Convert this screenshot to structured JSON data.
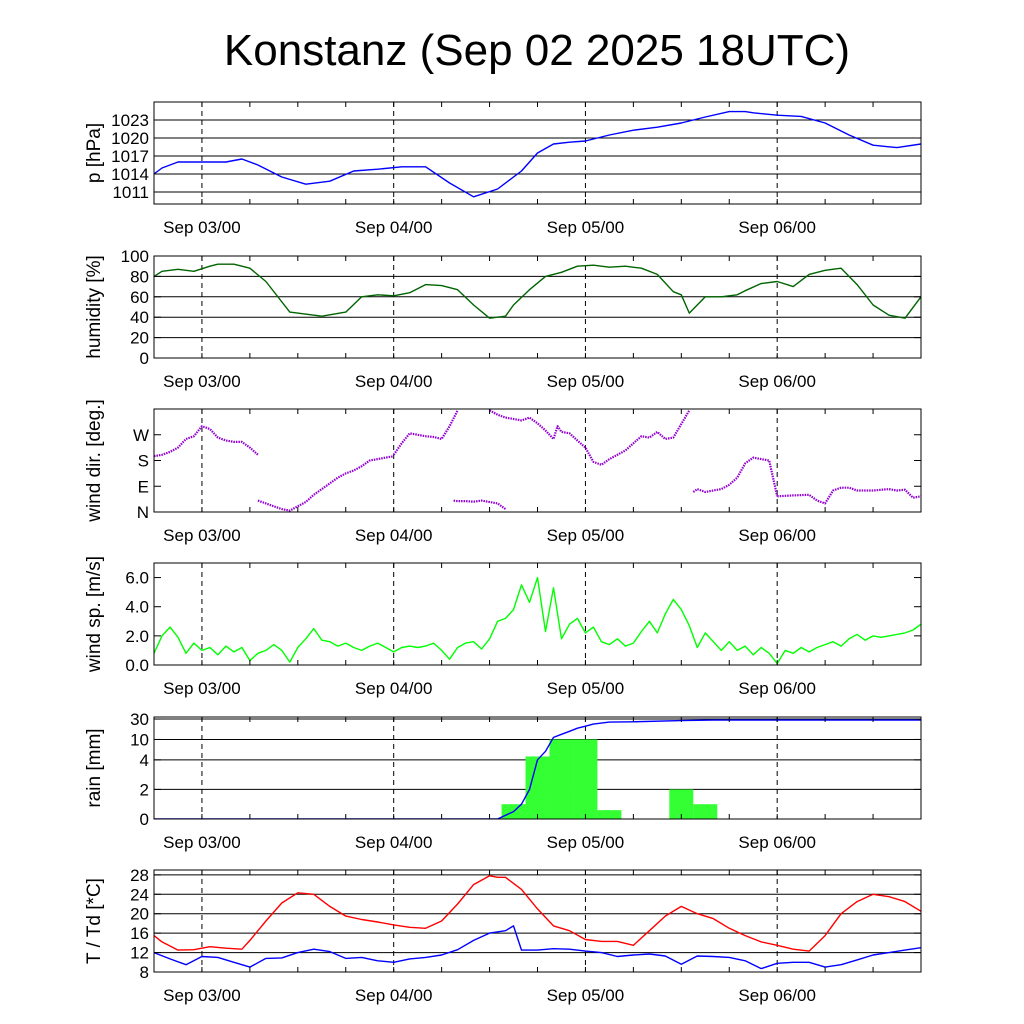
{
  "title": "Konstanz (Sep 02 2025 18UTC)",
  "x_axis": {
    "tick_labels": [
      "Sep 03/00",
      "Sep 04/00",
      "Sep 05/00",
      "Sep 06/00"
    ],
    "tick_hours": [
      6,
      30,
      54,
      78
    ],
    "range_hours": [
      0,
      96
    ],
    "minor_step_hours": 6
  },
  "colors": {
    "pressure": "#0000ff",
    "humidity": "#006400",
    "wind_dir": "#9400d3",
    "wind_speed": "#00ff00",
    "rain_bars": "#33ff33",
    "rain_cumulative": "#0000ff",
    "temperature": "#ff0000",
    "dewpoint": "#0000ff"
  },
  "chart_data": [
    {
      "type": "line",
      "ylabel": "p [hPa]",
      "ylim": [
        1009,
        1026
      ],
      "ytick_labels": [
        "1011",
        "1014",
        "1017",
        "1020",
        "1023"
      ],
      "ytick_values": [
        1011,
        1014,
        1017,
        1020,
        1023
      ],
      "grid": true,
      "series": [
        {
          "key": "pressure",
          "x": [
            0,
            1,
            3,
            6,
            9,
            11,
            13,
            16,
            19,
            22,
            25,
            28,
            31,
            34,
            37,
            40,
            43,
            46,
            48,
            50,
            52,
            54,
            57,
            60,
            63,
            66,
            69,
            72,
            74,
            75,
            78,
            81,
            84,
            87,
            90,
            93,
            96
          ],
          "y": [
            1014,
            1015,
            1016,
            1016,
            1016,
            1016.5,
            1015.5,
            1013.5,
            1012.3,
            1012.8,
            1014.5,
            1014.8,
            1015.2,
            1015.2,
            1012.5,
            1010.2,
            1011.5,
            1014.5,
            1017.5,
            1019,
            1019.3,
            1019.5,
            1020.5,
            1021.3,
            1021.8,
            1022.5,
            1023.5,
            1024.4,
            1024.4,
            1024.2,
            1023.8,
            1023.6,
            1022.5,
            1020.5,
            1018.8,
            1018.4,
            1019
          ]
        }
      ]
    },
    {
      "type": "line",
      "ylabel": "humidity [%]",
      "ylim": [
        0,
        100
      ],
      "ytick_labels": [
        "0",
        "20",
        "40",
        "60",
        "80",
        "100"
      ],
      "ytick_values": [
        0,
        20,
        40,
        60,
        80,
        100
      ],
      "grid": true,
      "series": [
        {
          "key": "humidity",
          "x": [
            0,
            1,
            3,
            5,
            7,
            8,
            10,
            12,
            14,
            17,
            21,
            24,
            26,
            28,
            30,
            32,
            34,
            36,
            38,
            40,
            42,
            44,
            45,
            47,
            49,
            51,
            53,
            55,
            57,
            59,
            61,
            63,
            65,
            66,
            67,
            69,
            71,
            73,
            74,
            76,
            78,
            80,
            82,
            84,
            86,
            88,
            90,
            92,
            94,
            96
          ],
          "y": [
            80,
            85,
            87,
            85,
            90,
            92,
            92,
            88,
            75,
            45,
            41,
            45,
            60,
            62,
            61,
            64,
            72,
            71,
            67,
            52,
            39,
            41,
            52,
            67,
            80,
            84,
            90,
            91,
            89,
            90,
            88,
            82,
            65,
            62,
            44,
            60,
            60,
            62,
            66,
            73,
            75,
            70,
            82,
            86,
            88,
            72,
            52,
            42,
            39,
            60
          ]
        }
      ]
    },
    {
      "type": "scatter",
      "ylabel": "wind dir. [deg.]",
      "ylim": [
        0,
        360
      ],
      "ytick_labels": [
        "N",
        "E",
        "S",
        "W"
      ],
      "ytick_values": [
        0,
        90,
        180,
        270
      ],
      "grid": false,
      "series": [
        {
          "key": "wind_dir",
          "segments": [
            {
              "x": [
                0,
                1,
                2,
                3,
                4,
                5,
                6,
                7,
                8,
                9,
                10,
                11,
                12,
                13
              ],
              "y": [
                195,
                200,
                210,
                225,
                255,
                265,
                300,
                290,
                260,
                250,
                245,
                245,
                225,
                200
              ]
            },
            {
              "x": [
                13,
                14,
                15,
                16,
                17,
                18,
                19,
                20,
                21,
                22,
                23,
                24,
                25,
                26,
                27,
                28,
                29,
                30
              ],
              "y": [
                40,
                30,
                20,
                10,
                5,
                20,
                35,
                60,
                80,
                100,
                120,
                135,
                145,
                160,
                180,
                185,
                190,
                195
              ]
            },
            {
              "x": [
                30,
                31,
                32,
                33,
                34,
                35,
                36,
                37,
                38
              ],
              "y": [
                200,
                240,
                275,
                270,
                265,
                262,
                255,
                300,
                355
              ]
            },
            {
              "x": [
                42,
                43,
                44,
                46,
                47,
                48,
                49,
                50,
                50.5,
                51,
                52,
                53,
                54,
                55,
                56,
                57,
                58,
                59,
                60,
                61,
                62,
                63,
                64,
                65,
                67
              ],
              "y": [
                355,
                340,
                330,
                320,
                330,
                310,
                285,
                255,
                300,
                280,
                275,
                250,
                225,
                175,
                165,
                185,
                200,
                215,
                240,
                265,
                260,
                280,
                255,
                260,
                355
              ]
            },
            {
              "x": [
                37.5,
                38,
                39,
                40,
                41,
                42,
                43,
                44
              ],
              "y": [
                40,
                38,
                38,
                36,
                40,
                35,
                30,
                10
              ]
            },
            {
              "x": [
                67.5,
                68,
                69,
                70,
                71,
                72,
                73,
                74,
                75,
                76,
                77,
                78
              ],
              "y": [
                70,
                80,
                70,
                75,
                80,
                95,
                120,
                170,
                190,
                185,
                180,
                55
              ]
            },
            {
              "x": [
                78,
                80,
                82,
                83,
                84,
                85,
                86,
                87,
                88,
                90,
                92,
                93,
                94,
                95,
                96
              ],
              "y": [
                55,
                58,
                60,
                40,
                30,
                75,
                85,
                85,
                75,
                75,
                80,
                75,
                78,
                50,
                55
              ]
            }
          ]
        }
      ]
    },
    {
      "type": "line",
      "ylabel": "wind sp. [m/s]",
      "ylim": [
        0,
        7
      ],
      "ytick_labels": [
        "0.0",
        "2.0",
        "4.0",
        "6.0"
      ],
      "ytick_values": [
        0,
        2,
        4,
        6
      ],
      "grid": false,
      "series": [
        {
          "key": "wind_speed",
          "x": [
            0,
            1,
            2,
            3,
            4,
            5,
            6,
            7,
            8,
            9,
            10,
            11,
            12,
            13,
            14,
            15,
            16,
            17,
            18,
            19,
            20,
            21,
            22,
            23,
            24,
            25,
            26,
            27,
            28,
            29,
            30,
            31,
            32,
            33,
            34,
            35,
            36,
            37,
            38,
            39,
            40,
            41,
            42,
            43,
            44,
            45,
            46,
            47,
            48,
            49,
            50,
            51,
            52,
            53,
            54,
            55,
            56,
            57,
            58,
            59,
            60,
            61,
            62,
            63,
            64,
            65,
            66,
            67,
            68,
            69,
            70,
            71,
            72,
            73,
            74,
            75,
            76,
            77,
            78,
            79,
            80,
            81,
            82,
            83,
            84,
            85,
            86,
            87,
            88,
            89,
            90,
            91,
            92,
            93,
            94,
            95,
            96
          ],
          "y": [
            0.8,
            2.0,
            2.6,
            1.9,
            0.8,
            1.5,
            1.0,
            1.2,
            0.7,
            1.3,
            0.9,
            1.2,
            0.3,
            0.8,
            1.0,
            1.4,
            1.0,
            0.2,
            1.2,
            1.8,
            2.5,
            1.7,
            1.6,
            1.3,
            1.5,
            1.2,
            1.0,
            1.3,
            1.5,
            1.2,
            0.9,
            1.2,
            1.3,
            1.2,
            1.3,
            1.5,
            1.0,
            0.4,
            1.2,
            1.5,
            1.6,
            1.1,
            1.8,
            3.0,
            3.2,
            3.8,
            5.5,
            4.3,
            6.0,
            2.3,
            5.3,
            1.8,
            2.8,
            3.2,
            2.2,
            2.6,
            1.6,
            1.4,
            1.8,
            1.3,
            1.5,
            2.3,
            3.0,
            2.2,
            3.5,
            4.5,
            3.8,
            2.7,
            1.2,
            2.2,
            1.6,
            1.0,
            1.6,
            1.0,
            1.3,
            0.7,
            1.2,
            0.8,
            0.1,
            1.0,
            0.8,
            1.2,
            0.9,
            1.2,
            1.4,
            1.6,
            1.3,
            1.8,
            2.1,
            1.7,
            2.0,
            1.9,
            2.0,
            2.1,
            2.2,
            2.4,
            2.8
          ]
        }
      ]
    },
    {
      "type": "bar",
      "ylabel": "rain [mm]",
      "y_scale": "log-like",
      "ytick_labels": [
        "0",
        "2",
        "4",
        "10",
        "30"
      ],
      "ytick_values": [
        0,
        2,
        4,
        10,
        30
      ],
      "grid": true,
      "series": [
        {
          "key": "rain_bars",
          "bars": [
            {
              "x0": 43.5,
              "x1": 46.5,
              "value": 1.0
            },
            {
              "x0": 46.5,
              "x1": 49.5,
              "value": 5.0
            },
            {
              "x0": 49.5,
              "x1": 52.5,
              "value": 10.0
            },
            {
              "x0": 52.5,
              "x1": 55.5,
              "value": 10.0
            },
            {
              "x0": 55.5,
              "x1": 58.5,
              "value": 0.6
            },
            {
              "x0": 64.5,
              "x1": 67.5,
              "value": 2.0
            },
            {
              "x0": 67.5,
              "x1": 70.5,
              "value": 1.0
            }
          ]
        },
        {
          "key": "rain_cumulative",
          "x": [
            0,
            43,
            45,
            46,
            47,
            48,
            49,
            50,
            51,
            52,
            53,
            54,
            55,
            56,
            57,
            60,
            66,
            70,
            96
          ],
          "y": [
            0,
            0,
            0.5,
            1.0,
            2.0,
            4.0,
            6.5,
            12,
            15,
            18,
            21,
            23,
            25,
            26,
            27,
            27.3,
            28.5,
            29,
            29
          ]
        }
      ]
    },
    {
      "type": "line",
      "ylabel": "T / Td [*C]",
      "ylim": [
        8,
        29
      ],
      "ytick_labels": [
        "8",
        "12",
        "16",
        "20",
        "24",
        "28"
      ],
      "ytick_values": [
        8,
        12,
        16,
        20,
        24,
        28
      ],
      "grid": true,
      "series": [
        {
          "key": "temperature",
          "x": [
            0,
            1,
            3,
            5,
            7,
            9,
            11,
            12,
            14,
            16,
            18,
            20,
            22,
            24,
            26,
            28,
            30,
            32,
            34,
            36,
            38,
            40,
            42,
            43,
            44,
            46,
            48,
            50,
            52,
            54,
            56,
            58,
            60,
            62,
            64,
            66,
            68,
            70,
            72,
            74,
            76,
            78,
            80,
            82,
            84,
            86,
            88,
            90,
            92,
            94,
            96
          ],
          "y": [
            15.5,
            14.2,
            12.5,
            12.6,
            13.2,
            12.9,
            12.7,
            14.5,
            18.5,
            22.2,
            24.3,
            24.0,
            21.5,
            19.5,
            18.8,
            18.3,
            17.7,
            17.2,
            17.0,
            18.5,
            22.0,
            26.0,
            27.8,
            27.5,
            27.5,
            25.0,
            21.0,
            17.5,
            16.5,
            14.7,
            14.3,
            14.3,
            13.5,
            16.5,
            19.5,
            21.5,
            20.0,
            19.0,
            17.0,
            15.5,
            14.2,
            13.5,
            12.7,
            12.3,
            15.5,
            20.0,
            22.5,
            24.0,
            23.5,
            22.5,
            20.5
          ]
        },
        {
          "key": "dewpoint",
          "x": [
            0,
            2,
            4,
            6,
            8,
            10,
            12,
            14,
            16,
            18,
            20,
            22,
            24,
            26,
            28,
            30,
            32,
            34,
            36,
            38,
            40,
            42,
            44,
            45,
            46,
            48,
            50,
            52,
            54,
            56,
            58,
            60,
            62,
            64,
            66,
            68,
            70,
            72,
            74,
            76,
            78,
            80,
            82,
            84,
            86,
            88,
            90,
            92,
            94,
            96
          ],
          "y": [
            12.0,
            10.7,
            9.5,
            11.2,
            11.0,
            10.0,
            9.0,
            10.8,
            10.9,
            12.0,
            12.7,
            12.2,
            10.8,
            11.0,
            10.3,
            10.0,
            10.7,
            11.0,
            11.5,
            12.6,
            14.5,
            16.0,
            16.5,
            17.5,
            12.5,
            12.5,
            12.8,
            12.7,
            12.3,
            12.0,
            11.2,
            11.5,
            11.7,
            11.3,
            9.6,
            11.3,
            11.2,
            11.0,
            10.3,
            8.7,
            9.8,
            10.0,
            10.0,
            9.0,
            9.5,
            10.5,
            11.5,
            12.0,
            12.5,
            13.0
          ]
        }
      ]
    }
  ]
}
